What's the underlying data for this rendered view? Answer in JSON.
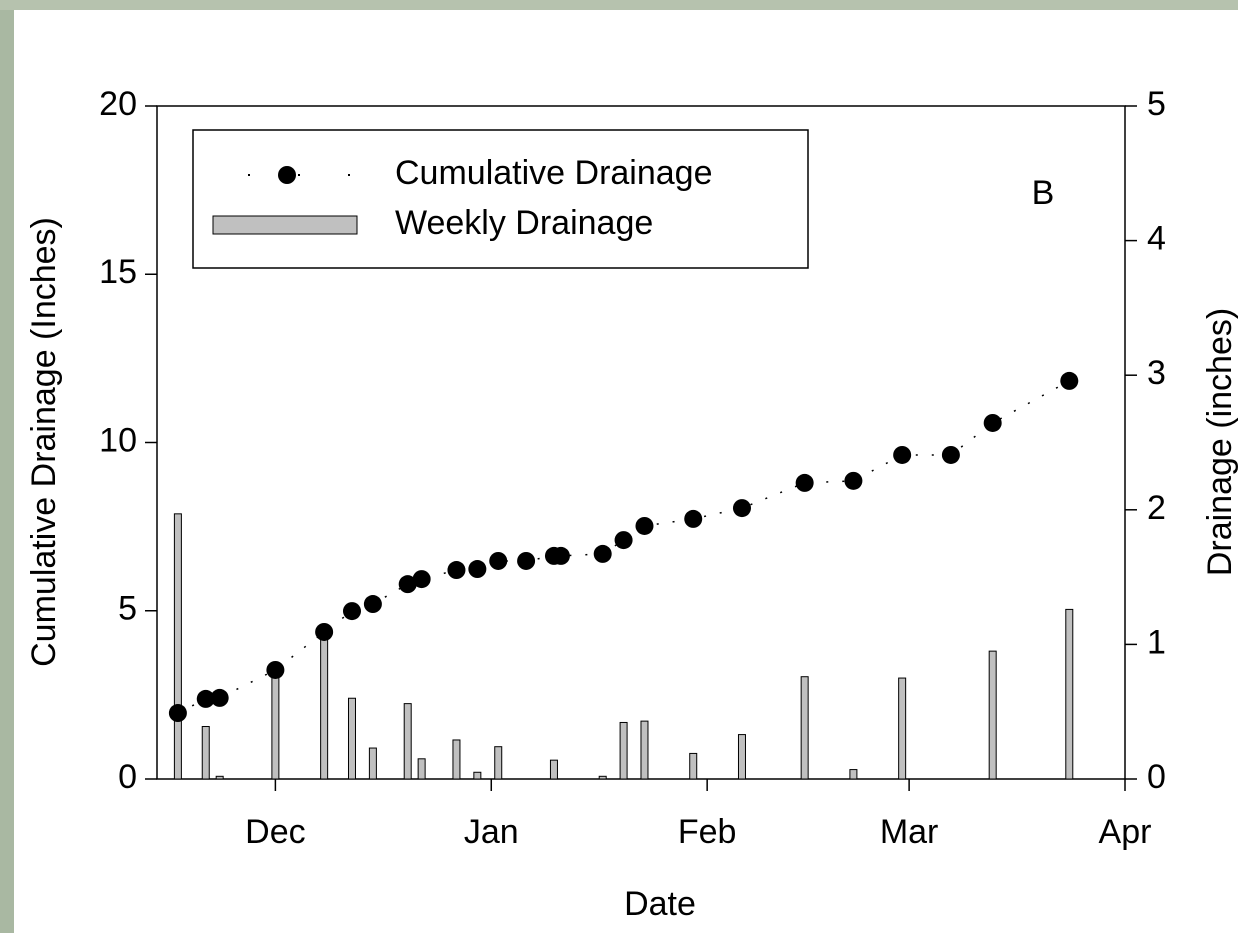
{
  "chart_data": {
    "type": "bar-scatter",
    "annotation": "B",
    "x_label": "Date",
    "y_label": "Cumulative Drainage  (Inches)",
    "y2_label": "Drainage (inches)",
    "xlim": [
      0,
      139
    ],
    "xticks": [
      {
        "value": 17,
        "label": "Dec"
      },
      {
        "value": 48,
        "label": "Jan"
      },
      {
        "value": 79,
        "label": "Feb"
      },
      {
        "value": 108,
        "label": "Mar"
      },
      {
        "value": 139,
        "label": "Apr"
      }
    ],
    "ylim": [
      0,
      20
    ],
    "yticks": [
      0,
      5,
      10,
      15,
      20
    ],
    "y2lim": [
      0,
      5
    ],
    "y2ticks": [
      0,
      1,
      2,
      3,
      4,
      5
    ],
    "legend": "top-left",
    "series": [
      {
        "name": "Cumulative Drainage",
        "kind": "scatter",
        "color": "#000000",
        "x": [
          3,
          7,
          9,
          17,
          24,
          28,
          31,
          36,
          38,
          43,
          46,
          49,
          53,
          57,
          58,
          64,
          67,
          70,
          77,
          84,
          93,
          100,
          107,
          114,
          120,
          131
        ],
        "values": [
          1.96,
          2.38,
          2.41,
          3.24,
          4.37,
          4.99,
          5.2,
          5.79,
          5.94,
          6.21,
          6.24,
          6.48,
          6.48,
          6.63,
          6.63,
          6.69,
          7.1,
          7.52,
          7.73,
          8.05,
          8.8,
          8.86,
          9.63,
          9.63,
          10.58,
          11.83
        ]
      },
      {
        "name": "Weekly Drainage",
        "kind": "bar",
        "axis": "y2",
        "color": "#c0c0c0",
        "x": [
          3,
          7,
          9,
          17,
          24,
          28,
          31,
          36,
          38,
          43,
          46,
          49,
          57,
          64,
          67,
          70,
          77,
          84,
          93,
          100,
          107,
          120,
          131
        ],
        "values": [
          1.97,
          0.39,
          0.02,
          0.85,
          1.12,
          0.6,
          0.23,
          0.56,
          0.15,
          0.29,
          0.05,
          0.24,
          0.14,
          0.02,
          0.42,
          0.43,
          0.19,
          0.33,
          0.76,
          0.07,
          0.75,
          0.95,
          1.26
        ]
      }
    ]
  }
}
